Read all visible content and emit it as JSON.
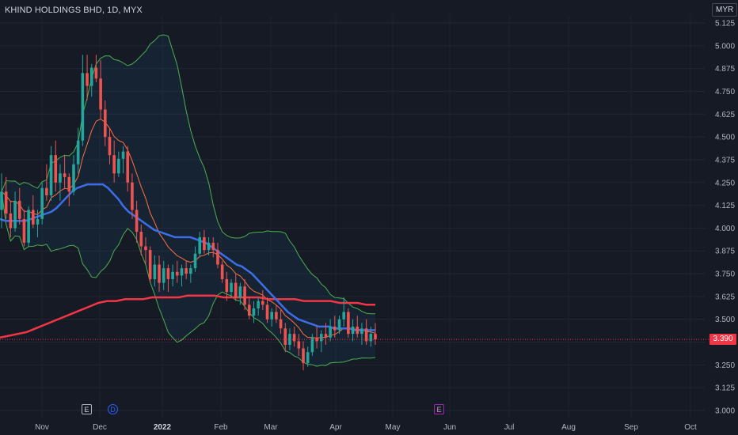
{
  "header": {
    "title": "KHIND HOLDINGS BHD, 1D, MYX",
    "currency": "MYR"
  },
  "price_tag": {
    "value": "3.390",
    "color": "#f23645"
  },
  "markers": {
    "earnings_1": "E",
    "dividend": "D",
    "earnings_2": "E"
  },
  "colors": {
    "background": "#161a25",
    "up_candle": "#26a69a",
    "down_candle": "#ef5350",
    "sma_fast": "#3d6ee8",
    "sma_slow": "#f23645",
    "bollinger": "#4caf50",
    "ema": "#ff7043"
  },
  "chart_data": {
    "type": "candlestick",
    "title": "KHIND HOLDINGS BHD, 1D, MYX",
    "ylim": [
      3.0,
      5.125
    ],
    "y_ticks": [
      "5.125",
      "5.000",
      "4.875",
      "4.750",
      "4.625",
      "4.500",
      "4.375",
      "4.250",
      "4.125",
      "4.000",
      "3.875",
      "3.750",
      "3.625",
      "3.500",
      "3.375",
      "3.250",
      "3.125",
      "3.000"
    ],
    "x_ticks": [
      "Nov",
      "Dec",
      "2022",
      "Feb",
      "Mar",
      "Apr",
      "May",
      "Jun",
      "Jul",
      "Aug",
      "Sep",
      "Oct"
    ],
    "x_ticks_bold": [
      "2022"
    ],
    "last_price": 3.39,
    "grid": true,
    "candles_ohlc": [
      [
        4.1,
        4.3,
        4.0,
        4.2
      ],
      [
        4.2,
        4.28,
        4.05,
        4.08
      ],
      [
        4.08,
        4.15,
        3.95,
        4.0
      ],
      [
        4.0,
        4.2,
        3.98,
        4.15
      ],
      [
        4.15,
        4.22,
        4.02,
        4.05
      ],
      [
        4.05,
        4.1,
        3.9,
        3.92
      ],
      [
        3.92,
        4.12,
        3.9,
        4.1
      ],
      [
        4.1,
        4.18,
        4.0,
        4.02
      ],
      [
        4.02,
        4.1,
        3.95,
        4.05
      ],
      [
        4.05,
        4.25,
        4.02,
        4.22
      ],
      [
        4.22,
        4.35,
        4.15,
        4.18
      ],
      [
        4.18,
        4.45,
        4.15,
        4.4
      ],
      [
        4.4,
        4.48,
        4.2,
        4.25
      ],
      [
        4.25,
        4.35,
        4.15,
        4.3
      ],
      [
        4.3,
        4.4,
        4.22,
        4.28
      ],
      [
        4.28,
        4.3,
        4.12,
        4.2
      ],
      [
        4.2,
        4.4,
        4.18,
        4.35
      ],
      [
        4.35,
        4.55,
        4.3,
        4.48
      ],
      [
        4.48,
        4.95,
        4.45,
        4.85
      ],
      [
        4.85,
        4.95,
        4.7,
        4.78
      ],
      [
        4.78,
        4.9,
        4.72,
        4.88
      ],
      [
        4.88,
        4.95,
        4.8,
        4.82
      ],
      [
        4.82,
        4.92,
        4.6,
        4.65
      ],
      [
        4.65,
        4.7,
        4.45,
        4.5
      ],
      [
        4.5,
        4.55,
        4.35,
        4.4
      ],
      [
        4.4,
        4.48,
        4.25,
        4.3
      ],
      [
        4.3,
        4.42,
        4.28,
        4.38
      ],
      [
        4.38,
        4.45,
        4.3,
        4.42
      ],
      [
        4.42,
        4.45,
        4.2,
        4.25
      ],
      [
        4.25,
        4.3,
        4.05,
        4.1
      ],
      [
        4.1,
        4.15,
        3.92,
        3.98
      ],
      [
        3.98,
        4.02,
        3.85,
        3.9
      ],
      [
        3.9,
        3.95,
        3.8,
        3.88
      ],
      [
        3.88,
        3.9,
        3.7,
        3.72
      ],
      [
        3.72,
        3.85,
        3.68,
        3.8
      ],
      [
        3.8,
        3.85,
        3.65,
        3.7
      ],
      [
        3.7,
        3.82,
        3.66,
        3.78
      ],
      [
        3.78,
        3.8,
        3.65,
        3.72
      ],
      [
        3.72,
        3.8,
        3.68,
        3.76
      ],
      [
        3.76,
        3.82,
        3.7,
        3.74
      ],
      [
        3.74,
        3.8,
        3.68,
        3.78
      ],
      [
        3.78,
        3.82,
        3.72,
        3.75
      ],
      [
        3.75,
        3.8,
        3.7,
        3.78
      ],
      [
        3.78,
        3.9,
        3.76,
        3.86
      ],
      [
        3.86,
        3.98,
        3.84,
        3.95
      ],
      [
        3.95,
        3.99,
        3.86,
        3.88
      ],
      [
        3.88,
        3.95,
        3.85,
        3.92
      ],
      [
        3.92,
        3.95,
        3.84,
        3.88
      ],
      [
        3.88,
        3.92,
        3.78,
        3.8
      ],
      [
        3.8,
        3.82,
        3.7,
        3.72
      ],
      [
        3.72,
        3.76,
        3.6,
        3.65
      ],
      [
        3.65,
        3.72,
        3.62,
        3.7
      ],
      [
        3.7,
        3.75,
        3.6,
        3.62
      ],
      [
        3.62,
        3.7,
        3.58,
        3.68
      ],
      [
        3.68,
        3.72,
        3.55,
        3.58
      ],
      [
        3.58,
        3.62,
        3.5,
        3.52
      ],
      [
        3.52,
        3.6,
        3.48,
        3.56
      ],
      [
        3.56,
        3.62,
        3.52,
        3.6
      ],
      [
        3.6,
        3.66,
        3.55,
        3.58
      ],
      [
        3.58,
        3.62,
        3.48,
        3.5
      ],
      [
        3.5,
        3.56,
        3.46,
        3.54
      ],
      [
        3.54,
        3.58,
        3.48,
        3.5
      ],
      [
        3.5,
        3.55,
        3.42,
        3.45
      ],
      [
        3.45,
        3.48,
        3.32,
        3.36
      ],
      [
        3.36,
        3.45,
        3.33,
        3.42
      ],
      [
        3.42,
        3.46,
        3.35,
        3.38
      ],
      [
        3.38,
        3.42,
        3.3,
        3.34
      ],
      [
        3.34,
        3.38,
        3.22,
        3.26
      ],
      [
        3.26,
        3.35,
        3.24,
        3.32
      ],
      [
        3.32,
        3.42,
        3.3,
        3.4
      ],
      [
        3.4,
        3.46,
        3.34,
        3.38
      ],
      [
        3.38,
        3.44,
        3.32,
        3.42
      ],
      [
        3.42,
        3.48,
        3.36,
        3.4
      ],
      [
        3.4,
        3.5,
        3.38,
        3.46
      ],
      [
        3.46,
        3.52,
        3.4,
        3.44
      ],
      [
        3.44,
        3.52,
        3.42,
        3.5
      ],
      [
        3.5,
        3.62,
        3.46,
        3.54
      ],
      [
        3.54,
        3.56,
        3.4,
        3.42
      ],
      [
        3.42,
        3.5,
        3.38,
        3.46
      ],
      [
        3.46,
        3.52,
        3.4,
        3.42
      ],
      [
        3.42,
        3.48,
        3.36,
        3.45
      ],
      [
        3.45,
        3.5,
        3.36,
        3.38
      ],
      [
        3.38,
        3.46,
        3.35,
        3.42
      ],
      [
        3.42,
        3.48,
        3.36,
        3.39
      ]
    ],
    "series": [
      {
        "name": "",
        "color": "#3d6ee8",
        "values": [
          4.05,
          4.04,
          4.04,
          4.04,
          4.04,
          4.04,
          4.05,
          4.06,
          4.07,
          4.08,
          4.09,
          4.11,
          4.14,
          4.17,
          4.2,
          4.22,
          4.23,
          4.24,
          4.24,
          4.24,
          4.24,
          4.22,
          4.19,
          4.16,
          4.12,
          4.09,
          4.07,
          4.05,
          4.03,
          4.01,
          3.99,
          3.98,
          3.97,
          3.96,
          3.95,
          3.95,
          3.95,
          3.95,
          3.94,
          3.93,
          3.92,
          3.9,
          3.88,
          3.86,
          3.84,
          3.82,
          3.8,
          3.79,
          3.77,
          3.75,
          3.72,
          3.69,
          3.66,
          3.63,
          3.6,
          3.57,
          3.54,
          3.52,
          3.5,
          3.49,
          3.48,
          3.47,
          3.46,
          3.46,
          3.46,
          3.45,
          3.45,
          3.45,
          3.45,
          3.44,
          3.44,
          3.44,
          3.44,
          3.44
        ]
      },
      {
        "name": "",
        "color": "#f23645",
        "values": [
          3.4,
          3.41,
          3.42,
          3.43,
          3.45,
          3.47,
          3.49,
          3.51,
          3.53,
          3.55,
          3.57,
          3.59,
          3.6,
          3.6,
          3.61,
          3.61,
          3.61,
          3.62,
          3.62,
          3.62,
          3.62,
          3.63,
          3.63,
          3.63,
          3.63,
          3.62,
          3.62,
          3.62,
          3.62,
          3.62,
          3.61,
          3.61,
          3.61,
          3.61,
          3.6,
          3.6,
          3.6,
          3.6,
          3.59,
          3.59,
          3.59,
          3.58,
          3.58
        ]
      }
    ]
  }
}
